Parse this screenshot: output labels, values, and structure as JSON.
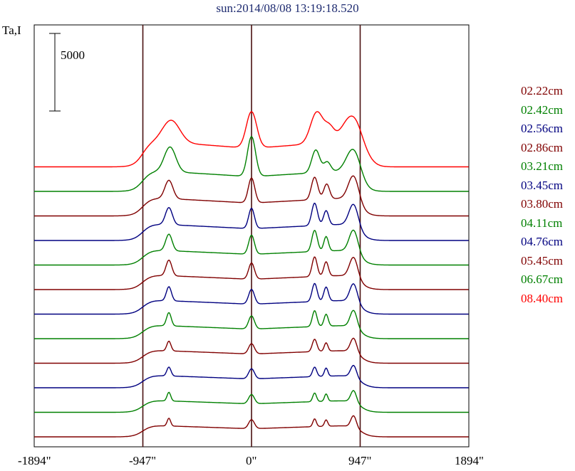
{
  "title": "sun:2014/08/08 13:19:18.520",
  "ylabel": "Ta,I",
  "scale_bar_label": "5000",
  "chart_data": {
    "type": "line",
    "title": "sun:2014/08/08 13:19:18.520",
    "ylabel": "Ta,I",
    "xlabel": "",
    "xlim": [
      -1894,
      1894
    ],
    "x_ticks": [
      "-1894\"",
      "-947\"",
      "0\"",
      "947\"",
      "1894\""
    ],
    "x_tick_values": [
      -1894,
      -947,
      0,
      947,
      1894
    ],
    "vertical_lines_at": [
      -947,
      0,
      947
    ],
    "scale_bar": 5000,
    "series": [
      {
        "name": "08.40cm",
        "color": "#ff0000",
        "base": 0,
        "disk": 5000,
        "peaks": [
          [
            -700,
            6800,
            75
          ],
          [
            0,
            9000,
            45
          ],
          [
            570,
            8200,
            55
          ],
          [
            680,
            5400,
            40
          ],
          [
            890,
            7800,
            90
          ]
        ]
      },
      {
        "name": "06.67cm",
        "color": "#008000",
        "base": 0,
        "disk": 4000,
        "peaks": [
          [
            -710,
            6500,
            50
          ],
          [
            0,
            8800,
            35
          ],
          [
            560,
            6200,
            35
          ],
          [
            660,
            4300,
            30
          ],
          [
            890,
            6500,
            60
          ]
        ]
      },
      {
        "name": "05.45cm",
        "color": "#800000",
        "base": 0,
        "disk": 3500,
        "peaks": [
          [
            -720,
            5200,
            35
          ],
          [
            0,
            6200,
            28
          ],
          [
            550,
            5800,
            28
          ],
          [
            655,
            4700,
            25
          ],
          [
            890,
            6200,
            45
          ]
        ]
      },
      {
        "name": "04.76cm",
        "color": "#000080",
        "base": 0,
        "disk": 3200,
        "peaks": [
          [
            -720,
            4800,
            30
          ],
          [
            0,
            5300,
            25
          ],
          [
            550,
            5600,
            25
          ],
          [
            650,
            4400,
            22
          ],
          [
            890,
            5600,
            40
          ]
        ]
      },
      {
        "name": "04.11cm",
        "color": "#008000",
        "base": 0,
        "disk": 2900,
        "peaks": [
          [
            -720,
            4500,
            28
          ],
          [
            0,
            4900,
            25
          ],
          [
            550,
            5200,
            24
          ],
          [
            650,
            4200,
            20
          ],
          [
            890,
            5400,
            38
          ]
        ]
      },
      {
        "name": "03.80cm",
        "color": "#800000",
        "base": 0,
        "disk": 2800,
        "peaks": [
          [
            -720,
            4300,
            25
          ],
          [
            0,
            4400,
            25
          ],
          [
            550,
            4900,
            22
          ],
          [
            650,
            4100,
            20
          ],
          [
            890,
            5000,
            35
          ]
        ]
      },
      {
        "name": "03.45cm",
        "color": "#000080",
        "base": 0,
        "disk": 2700,
        "peaks": [
          [
            -720,
            4000,
            22
          ],
          [
            0,
            4100,
            25
          ],
          [
            550,
            4600,
            22
          ],
          [
            650,
            4000,
            20
          ],
          [
            890,
            4700,
            33
          ]
        ]
      },
      {
        "name": "03.21cm",
        "color": "#008000",
        "base": 0,
        "disk": 2600,
        "peaks": [
          [
            -720,
            3800,
            20
          ],
          [
            0,
            3800,
            25
          ],
          [
            550,
            4200,
            20
          ],
          [
            650,
            3600,
            18
          ],
          [
            890,
            4400,
            30
          ]
        ]
      },
      {
        "name": "02.86cm",
        "color": "#800000",
        "base": 0,
        "disk": 2500,
        "peaks": [
          [
            -720,
            3200,
            18
          ],
          [
            0,
            3300,
            25
          ],
          [
            550,
            3600,
            20
          ],
          [
            650,
            3000,
            16
          ],
          [
            890,
            3900,
            28
          ]
        ]
      },
      {
        "name": "02.56cm",
        "color": "#000080",
        "base": 0,
        "disk": 2400,
        "peaks": [
          [
            -720,
            3000,
            18
          ],
          [
            0,
            3200,
            25
          ],
          [
            550,
            3100,
            18
          ],
          [
            650,
            2900,
            15
          ],
          [
            890,
            3500,
            26
          ]
        ]
      },
      {
        "name": "02.42cm",
        "color": "#008000",
        "base": 0,
        "disk": 2300,
        "peaks": [
          [
            -720,
            2900,
            16
          ],
          [
            0,
            3000,
            25
          ],
          [
            550,
            2900,
            16
          ],
          [
            650,
            2700,
            14
          ],
          [
            890,
            3400,
            25
          ]
        ]
      },
      {
        "name": "02.22cm",
        "color": "#800000",
        "base": 0,
        "disk": 2200,
        "peaks": [
          [
            -720,
            2700,
            15
          ],
          [
            0,
            2900,
            25
          ],
          [
            550,
            2700,
            15
          ],
          [
            650,
            2500,
            14
          ],
          [
            890,
            3300,
            24
          ]
        ]
      }
    ]
  },
  "colors": {
    "title": "#1e2b70",
    "frame": "#000000",
    "vline": "#4a1010"
  }
}
